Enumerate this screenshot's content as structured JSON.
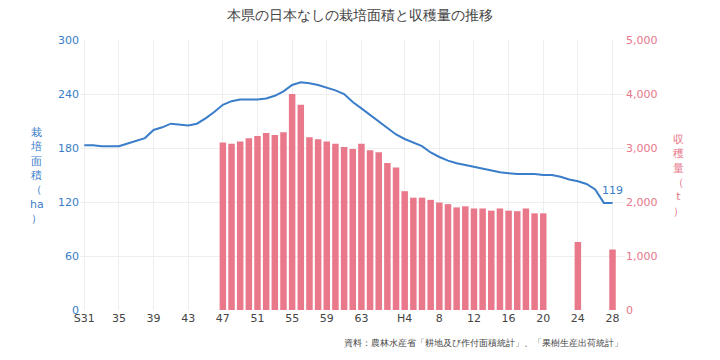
{
  "chart_data": {
    "type": "bar",
    "title": "本県の日本なしの栽培面積と収穫量の推移",
    "source": "資料：農林水産省「耕地及び作付面積統計」、「果樹生産出荷統計」",
    "ylabel": "栽\n培\n面\n積\n（\nha\n）",
    "y2label": "収\n穫\n量\n（\nt\n）",
    "annotations": [
      "119"
    ],
    "categories": [
      "S31",
      null,
      null,
      null,
      "35",
      null,
      null,
      null,
      "39",
      null,
      null,
      null,
      "43",
      null,
      null,
      null,
      "47",
      null,
      null,
      null,
      "51",
      null,
      null,
      null,
      "55",
      null,
      null,
      null,
      "59",
      null,
      null,
      null,
      "63",
      null,
      null,
      null,
      null,
      "H4",
      null,
      null,
      null,
      "8",
      null,
      null,
      null,
      "12",
      null,
      null,
      null,
      "16",
      null,
      null,
      null,
      "20",
      null,
      null,
      null,
      "24",
      null,
      null,
      null,
      "28"
    ],
    "series": [
      {
        "type": "bar",
        "axis": "y2",
        "color": "#e8788a",
        "values": [
          null,
          null,
          null,
          null,
          null,
          null,
          null,
          null,
          null,
          null,
          null,
          null,
          null,
          null,
          null,
          null,
          3100,
          3080,
          3120,
          3180,
          3220,
          3280,
          3240,
          3290,
          4000,
          3800,
          3200,
          3160,
          3120,
          3080,
          3020,
          2980,
          3080,
          2960,
          2920,
          2720,
          2640,
          2200,
          2080,
          2080,
          2040,
          1990,
          1960,
          1900,
          1920,
          1880,
          1880,
          1840,
          1880,
          1840,
          1830,
          1880,
          1790,
          1790,
          null,
          null,
          null,
          1260,
          null,
          null,
          null,
          1120
        ]
      },
      {
        "type": "line",
        "color": "#3a7dc9",
        "values": [
          183,
          183,
          182,
          182,
          182,
          185,
          188,
          191,
          200,
          203,
          207,
          206,
          205,
          207,
          213,
          220,
          228,
          232,
          234,
          234,
          234,
          235,
          238,
          243,
          250,
          253,
          252,
          250,
          247,
          244,
          240,
          231,
          224,
          217,
          210,
          202,
          195,
          190,
          186,
          182,
          175,
          170,
          166,
          163,
          161,
          159,
          157,
          155,
          153,
          152,
          151,
          151,
          151,
          150,
          150,
          148,
          145,
          143,
          140,
          134,
          119,
          119
        ]
      }
    ],
    "ylim": [
      0,
      300
    ],
    "yticks": [
      0,
      60,
      120,
      180,
      240,
      300
    ],
    "y2lim": [
      0,
      5000
    ],
    "y2ticks": [
      0,
      {
        "value": 1000,
        "label": "1,000"
      },
      {
        "value": 2000,
        "label": "2,000"
      },
      {
        "value": 3000,
        "label": "3,000"
      },
      {
        "value": 4000,
        "label": "4,000"
      },
      {
        "value": 5000,
        "label": "5,000"
      }
    ],
    "grid": true
  }
}
